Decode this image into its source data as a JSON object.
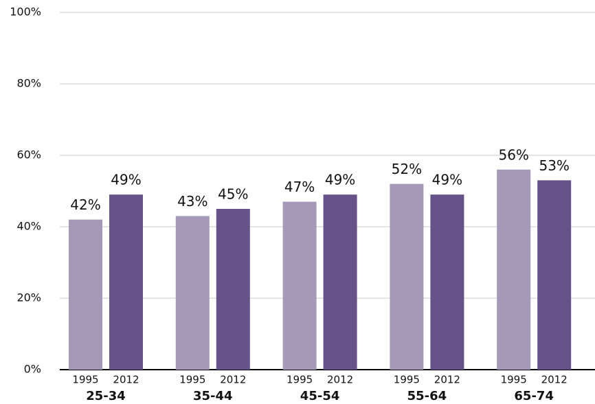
{
  "chart_data": {
    "type": "bar",
    "categories": [
      "25-34",
      "35-44",
      "45-54",
      "55-64",
      "65-74"
    ],
    "series": [
      {
        "name": "1995",
        "color": "#a598b9",
        "values": [
          42,
          43,
          47,
          52,
          56
        ],
        "value_labels": [
          "42%",
          "43%",
          "47%",
          "52%",
          "56%"
        ]
      },
      {
        "name": "2012",
        "color": "#655289",
        "values": [
          49,
          45,
          49,
          49,
          53
        ],
        "value_labels": [
          "49%",
          "45%",
          "49%",
          "49%",
          "53%"
        ]
      }
    ],
    "ylim": [
      0,
      100
    ],
    "yticks": [
      {
        "value": 0,
        "label": "0%"
      },
      {
        "value": 20,
        "label": "20%"
      },
      {
        "value": 40,
        "label": "40%"
      },
      {
        "value": 60,
        "label": "60%"
      },
      {
        "value": 80,
        "label": "80%"
      },
      {
        "value": 100,
        "label": "100%"
      }
    ],
    "grid": true
  }
}
